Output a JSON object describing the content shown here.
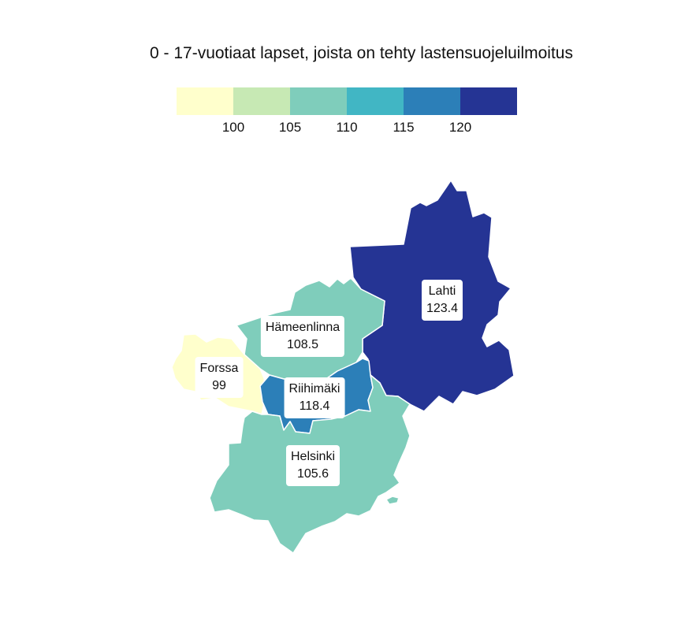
{
  "map": {
    "title": "0 - 17-vuotiaat lapset, joista on tehty lastensuojeluilmoitus"
  },
  "legend": {
    "colors": [
      "#ffffcc",
      "#c7e9b4",
      "#7fcdbb",
      "#41b6c4",
      "#2c7fb8",
      "#253494"
    ],
    "ticks": [
      "100",
      "105",
      "110",
      "115",
      "120"
    ]
  },
  "regions": [
    {
      "name": "Lahti",
      "value": "123.4",
      "color": "#253494"
    },
    {
      "name": "Hämeenlinna",
      "value": "108.5",
      "color": "#7fcdbb"
    },
    {
      "name": "Forssa",
      "value": "99",
      "color": "#ffffcc"
    },
    {
      "name": "Riihimäki",
      "value": "118.4",
      "color": "#2c7fb8"
    },
    {
      "name": "Helsinki",
      "value": "105.6",
      "color": "#7fcdbb"
    }
  ]
}
